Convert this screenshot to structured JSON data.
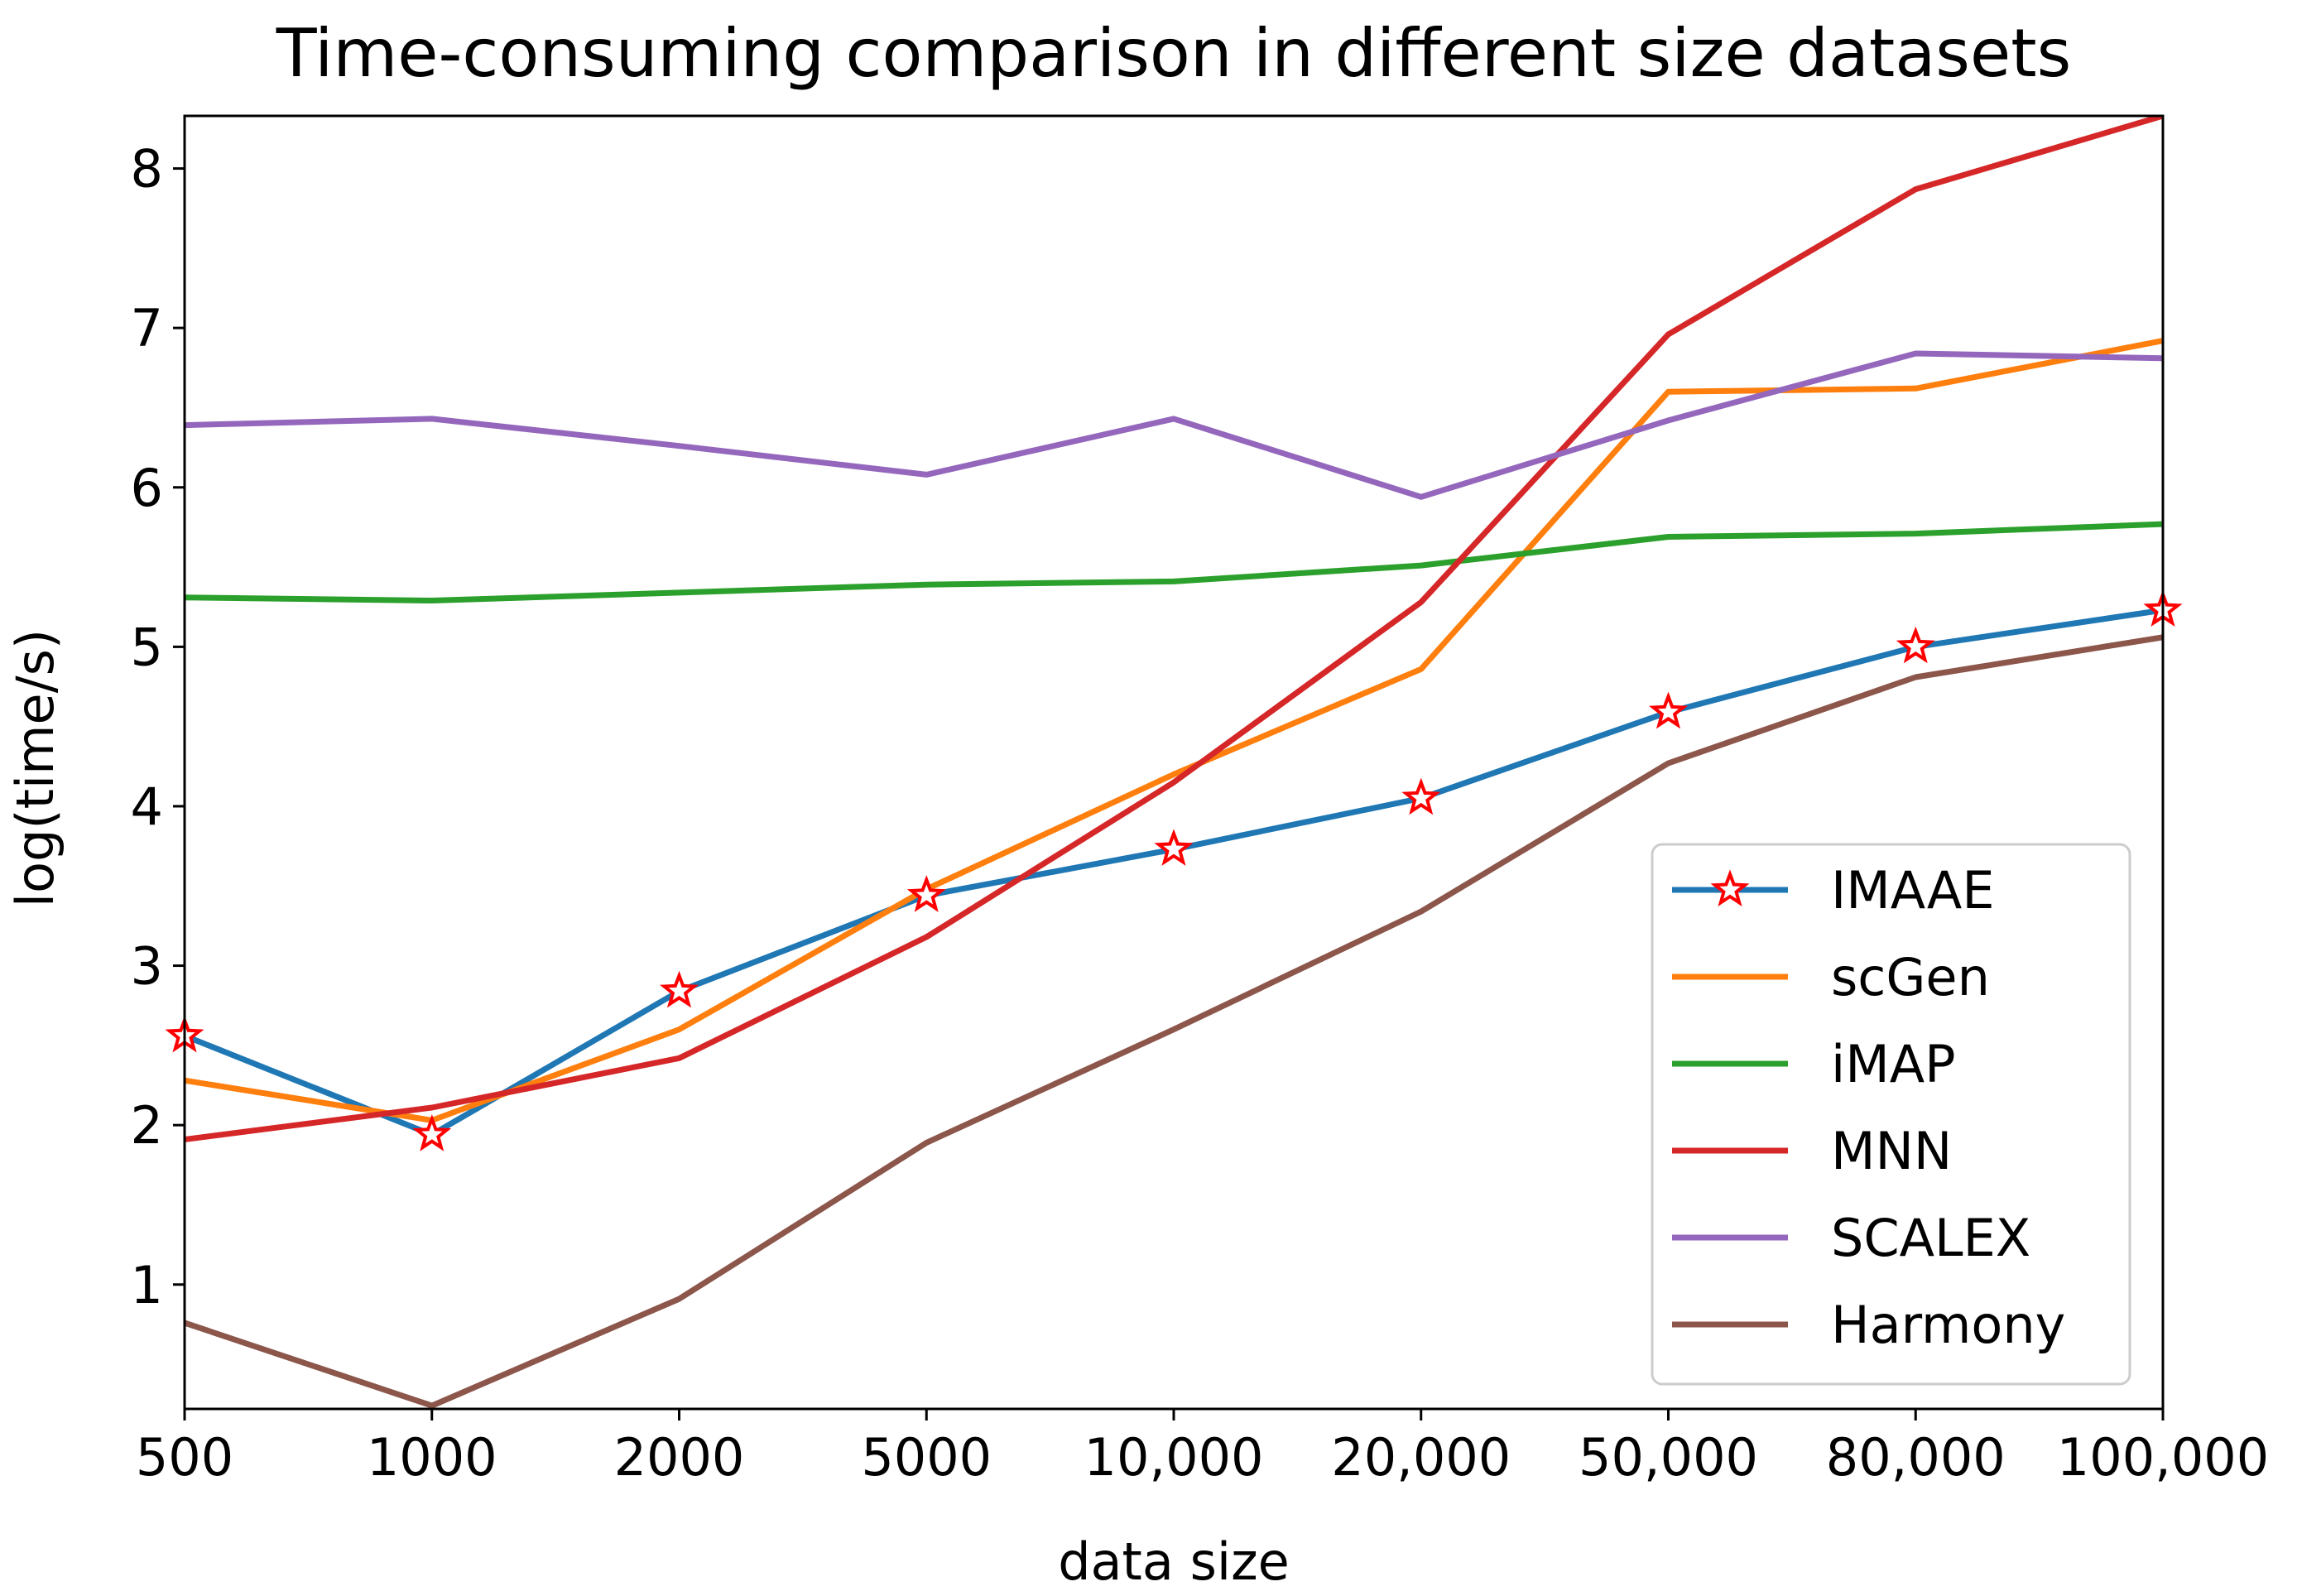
{
  "chart_data": {
    "type": "line",
    "title": "Time-consuming comparison in different size datasets",
    "xlabel": "data size",
    "ylabel": "log(time/s)",
    "categories": [
      "500",
      "1000",
      "2000",
      "5000",
      "10,000",
      "20,000",
      "50,000",
      "80,000",
      "100,000"
    ],
    "ylim": [
      0.22,
      8.33
    ],
    "yticks": [
      1,
      2,
      3,
      4,
      5,
      6,
      7,
      8
    ],
    "legend_position": "lower-right",
    "series": [
      {
        "name": "IMAAE",
        "color": "#1f77b4",
        "marker": "star",
        "marker_edge": "#ff0000",
        "values": [
          2.56,
          1.94,
          2.84,
          3.44,
          3.73,
          4.05,
          4.59,
          5.0,
          5.23
        ]
      },
      {
        "name": "scGen",
        "color": "#ff7f0e",
        "values": [
          2.28,
          2.03,
          2.6,
          3.48,
          4.2,
          4.86,
          6.6,
          6.62,
          6.92
        ]
      },
      {
        "name": "iMAP",
        "color": "#2ca02c",
        "values": [
          5.31,
          5.29,
          5.34,
          5.39,
          5.41,
          5.51,
          5.69,
          5.71,
          5.77
        ]
      },
      {
        "name": "MNN",
        "color": "#d62728",
        "values": [
          1.91,
          2.11,
          2.42,
          3.18,
          4.15,
          5.28,
          6.96,
          7.87,
          8.33
        ]
      },
      {
        "name": "SCALEX",
        "color": "#9467bd",
        "values": [
          6.39,
          6.43,
          6.26,
          6.08,
          6.43,
          5.94,
          6.42,
          6.84,
          6.81
        ]
      },
      {
        "name": "Harmony",
        "color": "#8c564b",
        "values": [
          0.76,
          0.24,
          0.91,
          1.89,
          2.6,
          3.34,
          4.27,
          4.81,
          5.06
        ]
      }
    ]
  }
}
